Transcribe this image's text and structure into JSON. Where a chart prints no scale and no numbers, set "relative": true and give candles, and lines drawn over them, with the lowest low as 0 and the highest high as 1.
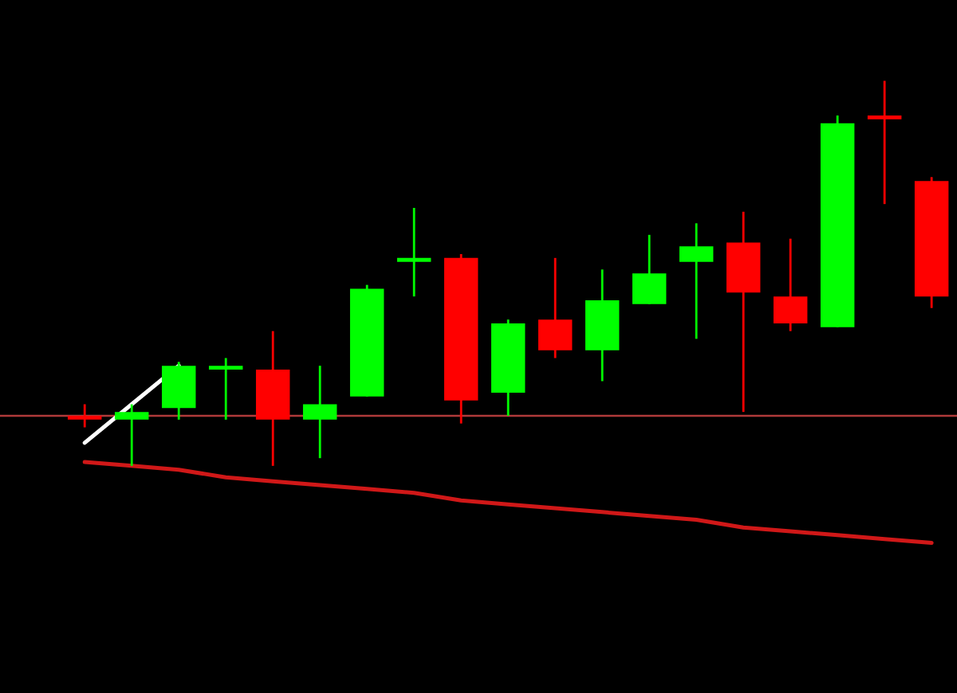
{
  "chart_data": {
    "type": "candlestick",
    "relative": true,
    "categories": [
      null,
      null,
      null,
      null,
      null,
      null,
      null,
      null,
      null,
      null,
      null,
      null,
      null,
      null,
      null,
      null,
      null,
      null,
      null
    ],
    "ohlc": [
      [
        0.13,
        0.16,
        0.1,
        0.12
      ],
      [
        0.12,
        0.16,
        0.0,
        0.14
      ],
      [
        0.15,
        0.27,
        0.12,
        0.26
      ],
      [
        0.25,
        0.28,
        0.12,
        0.26
      ],
      [
        0.25,
        0.35,
        0.0,
        0.12
      ],
      [
        0.12,
        0.26,
        0.02,
        0.16
      ],
      [
        0.18,
        0.47,
        0.18,
        0.46
      ],
      [
        0.53,
        0.67,
        0.44,
        0.54
      ],
      [
        0.54,
        0.55,
        0.11,
        0.17
      ],
      [
        0.19,
        0.38,
        0.13,
        0.37
      ],
      [
        0.38,
        0.54,
        0.28,
        0.3
      ],
      [
        0.3,
        0.51,
        0.22,
        0.43
      ],
      [
        0.42,
        0.6,
        0.42,
        0.5
      ],
      [
        0.53,
        0.63,
        0.33,
        0.57
      ],
      [
        0.58,
        0.66,
        0.14,
        0.45
      ],
      [
        0.44,
        0.59,
        0.35,
        0.37
      ],
      [
        0.36,
        0.91,
        0.36,
        0.89
      ],
      [
        0.91,
        1.0,
        0.68,
        0.9
      ],
      [
        0.74,
        0.75,
        0.41,
        0.44
      ]
    ],
    "colors": [
      "#ff0000",
      "#00ff00",
      "#00ff00",
      "#00ff00",
      "#ff0000",
      "#00ff00",
      "#00ff00",
      "#00ff00",
      "#ff0000",
      "#00ff00",
      "#ff0000",
      "#00ff00",
      "#00ff00",
      "#00ff00",
      "#ff0000",
      "#ff0000",
      "#00ff00",
      "#ff0000",
      "#ff0000"
    ],
    "series": [
      {
        "type": "line",
        "values": [
          0.06,
          0.16,
          0.26,
          null,
          null,
          null,
          null,
          null,
          null,
          null,
          null,
          null,
          null,
          null,
          null,
          null,
          null,
          null,
          null
        ],
        "color": "#ffffff"
      },
      {
        "type": "line",
        "values": [
          0.01,
          0.0,
          -0.01,
          -0.03,
          -0.04,
          -0.05,
          -0.06,
          -0.07,
          -0.09,
          -0.1,
          -0.11,
          -0.12,
          -0.13,
          -0.14,
          -0.16,
          -0.17,
          -0.18,
          -0.19,
          -0.2
        ],
        "color": "#d01818"
      }
    ],
    "ref_lines": [
      {
        "axis": "y",
        "value": 0.13,
        "color": "#b03a3a"
      }
    ]
  }
}
